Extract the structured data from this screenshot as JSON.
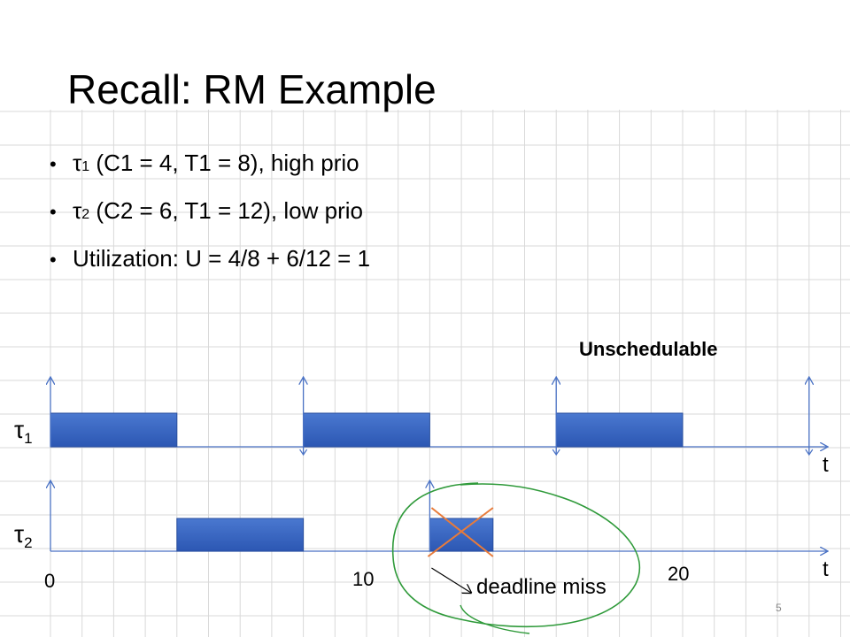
{
  "slide": {
    "title": "Recall: RM Example",
    "bullets": [
      {
        "symbol": "τ",
        "sub": "1",
        "text": " (C1 = 4, T1 = 8), high prio"
      },
      {
        "symbol": "τ",
        "sub": "2",
        "text": " (C2 = 6, T1 = 12), low prio"
      },
      {
        "symbol": "",
        "sub": "",
        "text": "Utilization: U = 4/8 + 6/12 = 1"
      }
    ],
    "status": "Unschedulable",
    "annotation": "deadline miss",
    "page_number": "5"
  },
  "chart_data": {
    "type": "gantt",
    "axis_label": "t",
    "tick_labels": [
      {
        "value": 0,
        "label": "0"
      },
      {
        "value": 10,
        "label": "10"
      },
      {
        "value": 20,
        "label": "20"
      }
    ],
    "tasks": [
      {
        "symbol": "τ",
        "sub": "1",
        "release_arrows": [
          0,
          8,
          16,
          24
        ],
        "executions": [
          [
            0,
            4
          ],
          [
            8,
            12
          ],
          [
            16,
            20
          ]
        ]
      },
      {
        "symbol": "τ",
        "sub": "2",
        "release_arrows": [
          0,
          12
        ],
        "executions": [
          [
            4,
            8
          ],
          [
            12,
            14
          ]
        ],
        "missed_execution": [
          12,
          14
        ]
      }
    ],
    "deadline_miss_time": 12,
    "colors": {
      "bar_top": "#4a78d0",
      "bar_bottom": "#2c57b3",
      "axis": "#4a72c4",
      "grid": "#d9d9d9",
      "cross": "#e87b3a",
      "circle": "#2f9a3a"
    }
  }
}
